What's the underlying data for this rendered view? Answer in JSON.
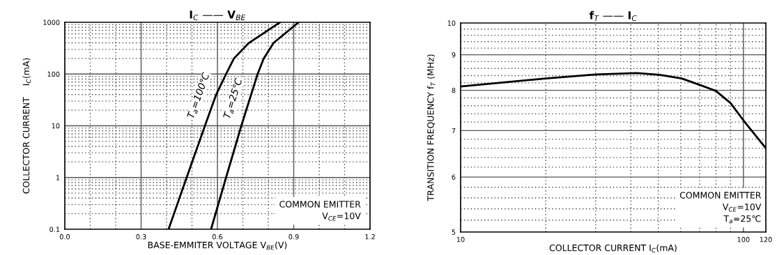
{
  "chart_data": [
    {
      "type": "line",
      "title": "I$_{C}$ —— V$_{BE}$",
      "xlabel": "BASE-EMMITER VOLTAGE V$_{BE}$(V)",
      "ylabel": "COLLECTOR CURRENT    I$_{C}$(mA)",
      "log": "y",
      "xlim": [
        0,
        1.2
      ],
      "xticks": [
        {
          "value": 0,
          "label": "0.0"
        },
        0.3,
        0.6,
        0.9,
        1.2
      ],
      "ylim": [
        0.1,
        1000
      ],
      "yticks": [
        0.1,
        1,
        10,
        100,
        1000
      ],
      "grid": true,
      "legend": false,
      "marker": "none",
      "line_style": "solid",
      "series": [
        {
          "name": "T$_{a}$=100℃",
          "color": "#000000",
          "x": [
            0.408,
            0.479,
            0.551,
            0.595,
            0.634,
            0.665,
            0.724,
            0.846
          ],
          "values": [
            0.1,
            1,
            10,
            40,
            100,
            200,
            400,
            1000
          ]
        },
        {
          "name": "T$_{a}$=25℃",
          "color": "#000000",
          "x": [
            0.575,
            0.634,
            0.694,
            0.758,
            0.782,
            0.821,
            0.919
          ],
          "values": [
            0.1,
            1,
            10,
            100,
            200,
            400,
            1000
          ]
        }
      ],
      "annotations": [
        "COMMON EMITTER\nV$_{CE}$=10V"
      ]
    },
    {
      "type": "line",
      "title": "f$_{T}$ —— I$_{C}$",
      "xlabel": "COLLECTOR CURRENT I$_{C}$(mA)",
      "ylabel": "TRANSITION FREQUENCY f$_{T}$ (MHz)",
      "log": "xy",
      "xlim": [
        10,
        120
      ],
      "xticks": [
        10,
        100,
        120
      ],
      "ylim": [
        5,
        10
      ],
      "yticks": [
        5,
        6,
        7,
        8,
        9,
        10
      ],
      "grid": true,
      "legend": false,
      "marker": "none",
      "line_style": "solid",
      "series": [
        {
          "color": "#000000",
          "x": [
            10,
            20,
            30,
            42,
            50.5,
            60.5,
            70.9,
            80,
            90,
            100,
            120
          ],
          "values": [
            8.1,
            8.32,
            8.43,
            8.47,
            8.42,
            8.32,
            8.13,
            7.98,
            7.67,
            7.24,
            6.6
          ]
        }
      ],
      "annotations": [
        "COMMON EMITTER\nV$_{CE}$=10V\nT$_{a}$=25℃"
      ]
    }
  ]
}
